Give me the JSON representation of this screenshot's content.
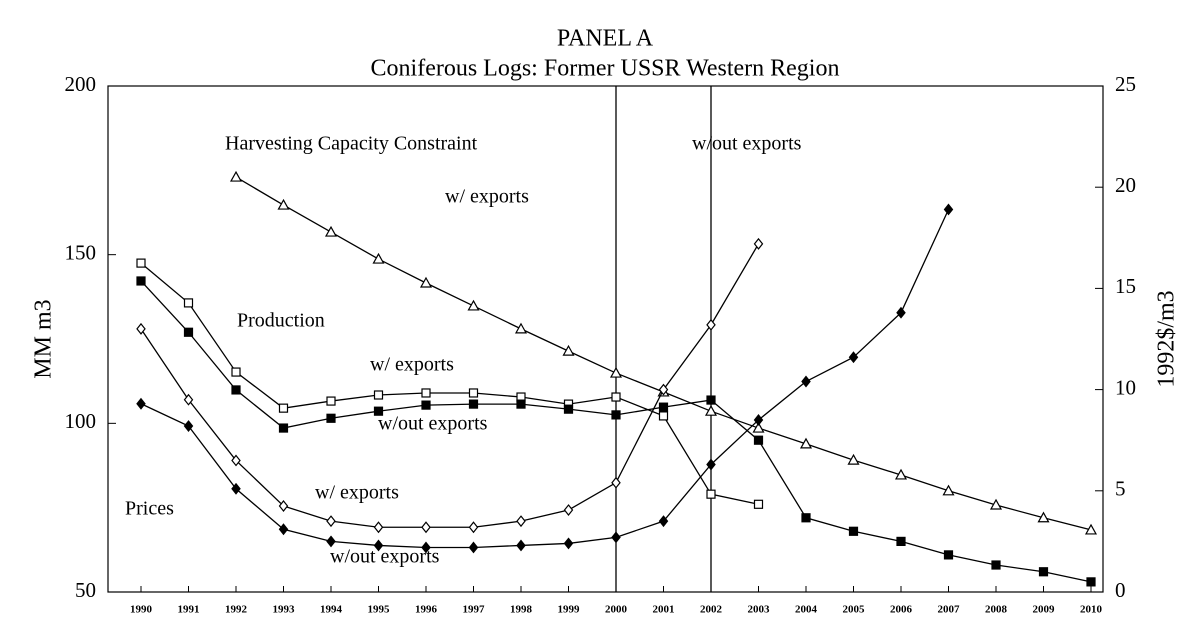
{
  "chart_data": {
    "type": "line",
    "title": "PANEL A",
    "subtitle": "Coniferous Logs:  Former USSR Western Region",
    "ylabel": "MM m3",
    "y2label": "1992$/m3",
    "categories": [
      "1990",
      "1991",
      "1992",
      "1993",
      "1994",
      "1995",
      "1996",
      "1997",
      "1998",
      "1999",
      "2000",
      "2001",
      "2002",
      "2003",
      "2004",
      "2005",
      "2006",
      "2007",
      "2008",
      "2009",
      "2010"
    ],
    "ylim": [
      50,
      200
    ],
    "yticks": [
      50,
      100,
      150,
      200
    ],
    "y2lim": [
      0,
      25
    ],
    "y2ticks": [
      0,
      5,
      10,
      15,
      20,
      25
    ],
    "vertical_lines": [
      "2000",
      "2002"
    ],
    "annotations": [
      "Harvesting Capacity Constraint",
      "w/out exports",
      "w/ exports",
      "Production",
      "w/ exports",
      "w/out exports",
      "w/ exports",
      "Prices",
      "w/out exports"
    ],
    "series": [
      {
        "color": "#000000",
        "marker": "triangle-open",
        "values": [
          null,
          null,
          173,
          164.7,
          156.7,
          148.7,
          141.6,
          134.8,
          128,
          121.4,
          114.9,
          109.3,
          103.6,
          98.6,
          93.9,
          89.1,
          84.7,
          80,
          75.8,
          72,
          68.4
        ]
      },
      {
        "color": "#000000",
        "marker": "square-open",
        "values": [
          147.5,
          135.7,
          115.2,
          104.5,
          106.6,
          108.4,
          109,
          109,
          107.8,
          105.7,
          107.8,
          102.2,
          79,
          76,
          null,
          null,
          null,
          null,
          null,
          null,
          null
        ]
      },
      {
        "color": "#000000",
        "marker": "square-filled",
        "values": [
          142.2,
          127,
          109.9,
          98.6,
          101.5,
          103.6,
          105.4,
          105.7,
          105.7,
          104.2,
          102.5,
          104.8,
          106.9,
          95,
          72,
          68,
          65,
          61,
          58,
          56,
          53
        ]
      },
      {
        "color": "#000000",
        "marker": "diamond-open",
        "axis": "y2",
        "values": [
          13,
          9.5,
          6.5,
          4.25,
          3.5,
          3.2,
          3.2,
          3.2,
          3.5,
          4.05,
          5.4,
          10,
          13.2,
          17.2,
          null,
          null,
          null,
          null,
          null,
          null,
          null
        ]
      },
      {
        "color": "#000000",
        "marker": "diamond-filled",
        "axis": "y2",
        "values": [
          9.3,
          8.2,
          5.1,
          3.1,
          2.5,
          2.3,
          2.2,
          2.2,
          2.3,
          2.4,
          2.7,
          3.5,
          6.3,
          8.5,
          10.4,
          11.6,
          13.8,
          18.9,
          null,
          null,
          null
        ]
      }
    ]
  }
}
